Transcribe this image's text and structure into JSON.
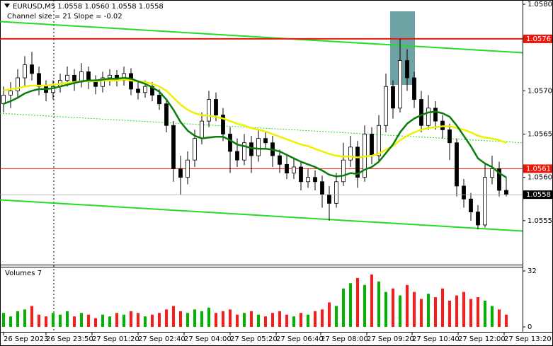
{
  "chart_data": {
    "type": "candlestick",
    "title": "EURUSD,M5  1.0558 1.0560 1.0558 1.0558",
    "subtitle": "Channel size = 21 Slope = -0.02",
    "candles": [
      [
        1.05685,
        1.05705,
        1.05675,
        1.05695
      ],
      [
        1.05695,
        1.0571,
        1.0568,
        1.057
      ],
      [
        1.057,
        1.05725,
        1.05692,
        1.05715
      ],
      [
        1.05715,
        1.0574,
        1.05705,
        1.0573
      ],
      [
        1.0573,
        1.05745,
        1.05712,
        1.0572
      ],
      [
        1.0572,
        1.05728,
        1.05695,
        1.05705
      ],
      [
        1.05705,
        1.05712,
        1.05688,
        1.05698
      ],
      [
        1.05698,
        1.05712,
        1.0569,
        1.05705
      ],
      [
        1.05705,
        1.0572,
        1.05698,
        1.05712
      ],
      [
        1.05712,
        1.05728,
        1.05705,
        1.05718
      ],
      [
        1.05718,
        1.05725,
        1.057,
        1.0571
      ],
      [
        1.0571,
        1.05732,
        1.05704,
        1.05722
      ],
      [
        1.05722,
        1.05728,
        1.05702,
        1.05712
      ],
      [
        1.05712,
        1.05718,
        1.05696,
        1.05705
      ],
      [
        1.05705,
        1.05722,
        1.05698,
        1.05715
      ],
      [
        1.05715,
        1.05725,
        1.05706,
        1.05718
      ],
      [
        1.05718,
        1.05724,
        1.05705,
        1.05712
      ],
      [
        1.05712,
        1.05728,
        1.05706,
        1.0572
      ],
      [
        1.0572,
        1.05726,
        1.05695,
        1.05702
      ],
      [
        1.05702,
        1.0571,
        1.0569,
        1.05698
      ],
      [
        1.05698,
        1.05712,
        1.05692,
        1.05705
      ],
      [
        1.05705,
        1.0571,
        1.05688,
        1.05695
      ],
      [
        1.05695,
        1.05702,
        1.05678,
        1.05685
      ],
      [
        1.05685,
        1.0569,
        1.05652,
        1.0566
      ],
      [
        1.0566,
        1.05665,
        1.05595,
        1.0561
      ],
      [
        1.0561,
        1.05625,
        1.0558,
        1.056
      ],
      [
        1.056,
        1.0563,
        1.05592,
        1.0562
      ],
      [
        1.0562,
        1.05655,
        1.05612,
        1.05645
      ],
      [
        1.05645,
        1.05675,
        1.05638,
        1.05665
      ],
      [
        1.05665,
        1.057,
        1.05658,
        1.0569
      ],
      [
        1.0569,
        1.05698,
        1.05665,
        1.05672
      ],
      [
        1.05672,
        1.0568,
        1.05642,
        1.0565
      ],
      [
        1.0565,
        1.05658,
        1.05605,
        1.0563
      ],
      [
        1.0563,
        1.05645,
        1.05612,
        1.0562
      ],
      [
        1.0562,
        1.0565,
        1.05614,
        1.0564
      ],
      [
        1.0564,
        1.05648,
        1.05605,
        1.05625
      ],
      [
        1.05625,
        1.05655,
        1.05618,
        1.05645
      ],
      [
        1.05645,
        1.05652,
        1.05632,
        1.0564
      ],
      [
        1.0564,
        1.05648,
        1.05612,
        1.05625
      ],
      [
        1.05625,
        1.05632,
        1.05605,
        1.05615
      ],
      [
        1.05615,
        1.05625,
        1.05598,
        1.05605
      ],
      [
        1.05605,
        1.05622,
        1.05598,
        1.05612
      ],
      [
        1.05612,
        1.05618,
        1.05585,
        1.05595
      ],
      [
        1.05595,
        1.0561,
        1.05588,
        1.056
      ],
      [
        1.056,
        1.05608,
        1.05585,
        1.05595
      ],
      [
        1.05595,
        1.05602,
        1.05565,
        1.0558
      ],
      [
        1.0558,
        1.0559,
        1.0555,
        1.0557
      ],
      [
        1.0557,
        1.05605,
        1.05565,
        1.05595
      ],
      [
        1.05595,
        1.0564,
        1.0559,
        1.0562
      ],
      [
        1.0562,
        1.05648,
        1.05612,
        1.05635
      ],
      [
        1.05635,
        1.05642,
        1.05588,
        1.056
      ],
      [
        1.056,
        1.0566,
        1.05595,
        1.0565
      ],
      [
        1.0565,
        1.05658,
        1.05615,
        1.05625
      ],
      [
        1.05625,
        1.05672,
        1.05618,
        1.0566
      ],
      [
        1.0566,
        1.0572,
        1.05652,
        1.05705
      ],
      [
        1.05705,
        1.05712,
        1.05668,
        1.0568
      ],
      [
        1.0568,
        1.0576,
        1.05675,
        1.05735
      ],
      [
        1.05735,
        1.05748,
        1.057,
        1.05715
      ],
      [
        1.05715,
        1.05722,
        1.0568,
        1.0569
      ],
      [
        1.0569,
        1.057,
        1.05652,
        1.0566
      ],
      [
        1.0566,
        1.05695,
        1.05655,
        1.0568
      ],
      [
        1.0568,
        1.05688,
        1.05655,
        1.05665
      ],
      [
        1.05665,
        1.05672,
        1.05645,
        1.05655
      ],
      [
        1.05655,
        1.05662,
        1.0562,
        1.0564
      ],
      [
        1.0564,
        1.05645,
        1.05578,
        1.0559
      ],
      [
        1.0559,
        1.05598,
        1.05565,
        1.05575
      ],
      [
        1.05575,
        1.05582,
        1.0555,
        1.0556
      ],
      [
        1.0556,
        1.05568,
        1.0554,
        1.05545
      ],
      [
        1.05545,
        1.05615,
        1.05542,
        1.056
      ],
      [
        1.056,
        1.05625,
        1.05592,
        1.0561
      ],
      [
        1.0561,
        1.05618,
        1.05578,
        1.05585
      ],
      [
        1.05585,
        1.056,
        1.05578,
        1.0558
      ]
    ],
    "up_color": "#ffffff",
    "down_color": "#000000",
    "xlim": [
      -0.5,
      73.3
    ],
    "xticks": [
      {
        "value": 0,
        "label": "26 Sep 2023"
      },
      {
        "value": 6,
        "label": "26 Sep 23:50"
      },
      {
        "value": 12.5,
        "label": "27 Sep 01:20"
      },
      {
        "value": 19,
        "label": "27 Sep 02:40"
      },
      {
        "value": 25.5,
        "label": "27 Sep 04:00"
      },
      {
        "value": 32,
        "label": "27 Sep 05:20"
      },
      {
        "value": 38.5,
        "label": "27 Sep 06:40"
      },
      {
        "value": 44.8,
        "label": "27 Sep 08:00"
      },
      {
        "value": 51.3,
        "label": "27 Sep 09:20"
      },
      {
        "value": 57.7,
        "label": "27 Sep 10:40"
      },
      {
        "value": 64.2,
        "label": "27 Sep 12:00"
      },
      {
        "value": 70.7,
        "label": "27 Sep 13:20"
      }
    ],
    "ylim": [
      1.055,
      1.058
    ],
    "yticks": [
      1.0555,
      {
        "value": 1.056,
        "label": "1.0560"
      },
      1.0565,
      {
        "value": 1.057,
        "label": "1.0570"
      },
      {
        "value": 1.058,
        "label": "1.0580"
      }
    ],
    "series": [
      {
        "color": "#f0f000",
        "values": [
          1.057,
          1.05702,
          1.05703,
          1.05705,
          1.05706,
          1.05706,
          1.05706,
          1.05707,
          1.05708,
          1.05709,
          1.0571,
          1.05711,
          1.05711,
          1.05711,
          1.05712,
          1.05712,
          1.05712,
          1.05713,
          1.05712,
          1.05711,
          1.0571,
          1.05708,
          1.05705,
          1.057,
          1.05692,
          1.05684,
          1.05678,
          1.05674,
          1.05672,
          1.05671,
          1.0567,
          1.05668,
          1.05665,
          1.05662,
          1.0566,
          1.05657,
          1.05655,
          1.05653,
          1.0565,
          1.05647,
          1.05644,
          1.05641,
          1.05638,
          1.05636,
          1.05633,
          1.0563,
          1.05627,
          1.05625,
          1.05624,
          1.05624,
          1.05623,
          1.05624,
          1.05625,
          1.05627,
          1.05632,
          1.05636,
          1.05643,
          1.05648,
          1.05652,
          1.05655,
          1.05657,
          1.05658,
          1.05659,
          1.05659,
          1.05657,
          1.05655,
          1.05652,
          1.05648,
          1.05646,
          1.05645,
          1.05643,
          1.0564
        ]
      },
      {
        "color": "#0b7d0b",
        "values": [
          1.05685,
          1.05688,
          1.05692,
          1.05697,
          1.057,
          1.05702,
          1.05702,
          1.05703,
          1.05705,
          1.05707,
          1.05709,
          1.05711,
          1.05712,
          1.05712,
          1.05713,
          1.05714,
          1.05714,
          1.05715,
          1.05714,
          1.05711,
          1.05708,
          1.05704,
          1.05699,
          1.0569,
          1.05678,
          1.05664,
          1.05654,
          1.05648,
          1.05645,
          1.05646,
          1.05647,
          1.05647,
          1.05643,
          1.05638,
          1.05636,
          1.05634,
          1.05633,
          1.05633,
          1.05632,
          1.0563,
          1.05626,
          1.05622,
          1.05618,
          1.05615,
          1.05612,
          1.05608,
          1.05603,
          1.05601,
          1.05602,
          1.05605,
          1.05604,
          1.05609,
          1.05612,
          1.05618,
          1.05628,
          1.05638,
          1.05652,
          1.05662,
          1.05668,
          1.05672,
          1.05675,
          1.05676,
          1.05674,
          1.0567,
          1.0566,
          1.05648,
          1.05636,
          1.05622,
          1.05616,
          1.05612,
          1.05605,
          1.056
        ]
      }
    ],
    "channel_lines": [
      {
        "color": "#22dd22",
        "dash": false,
        "values": [
          1.0578,
          1.05744
        ]
      },
      {
        "color": "#22dd22",
        "dash": true,
        "values": [
          1.05674,
          1.0564
        ]
      },
      {
        "color": "#22dd22",
        "dash": false,
        "values": [
          1.05574,
          1.05538
        ]
      }
    ],
    "levels": [
      {
        "value": 1.0576,
        "color": "#e8190c"
      },
      {
        "value": 1.0561,
        "color": "#e8190c"
      }
    ],
    "last_price": 1.0558,
    "volume": {
      "title": "Volumes 7",
      "values": [
        8,
        6,
        9,
        10,
        12,
        7,
        6,
        8,
        7,
        9,
        6,
        8,
        7,
        5,
        7,
        6,
        8,
        7,
        9,
        8,
        6,
        7,
        8,
        10,
        12,
        9,
        8,
        10,
        9,
        11,
        8,
        9,
        10,
        7,
        8,
        9,
        7,
        6,
        8,
        9,
        7,
        6,
        8,
        7,
        9,
        10,
        14,
        12,
        22,
        25,
        28,
        24,
        30,
        26,
        20,
        22,
        18,
        24,
        20,
        16,
        19,
        17,
        22,
        15,
        18,
        20,
        16,
        17,
        15,
        12,
        10,
        7
      ],
      "ylim": [
        0,
        32
      ],
      "yticks": [
        0,
        32
      ],
      "up_color": "#00b400",
      "down_color": "#ff1a1a"
    }
  }
}
